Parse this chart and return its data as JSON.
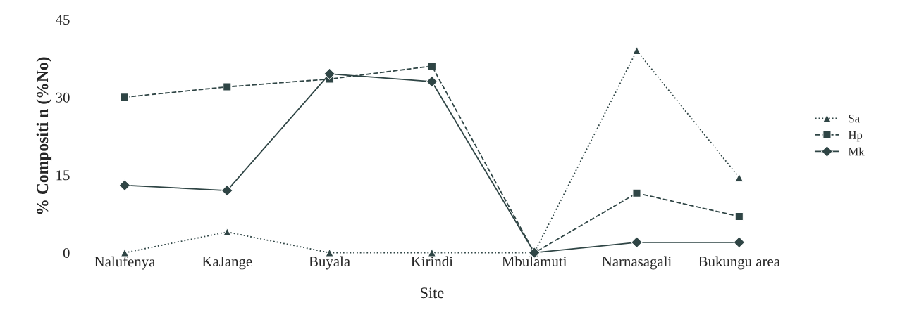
{
  "chart_data": {
    "type": "line",
    "ylabel": "% Compositi n (%No)",
    "xlabel": "Site",
    "categories": [
      "Nalufenya",
      "KaJange",
      "Buyala",
      "Kirindi",
      "Mbulamuti",
      "Narnasagali",
      "Bukungu area"
    ],
    "series": [
      {
        "name": "Sa",
        "color": "#2f4545",
        "values": [
          0,
          4,
          0,
          0,
          0,
          39,
          14.5
        ],
        "marker": "triangle",
        "line_style": "dotted"
      },
      {
        "name": "Hp",
        "color": "#2f4545",
        "values": [
          30,
          32,
          33.5,
          36,
          0,
          11.5,
          7
        ],
        "marker": "square",
        "line_style": "dashed"
      },
      {
        "name": "Mk",
        "color": "#2f4545",
        "values": [
          13,
          12,
          34.5,
          33,
          0,
          2,
          2
        ],
        "marker": "diamond",
        "line_style": "solid"
      }
    ],
    "ylim": [
      0,
      45
    ],
    "yticks": [
      0,
      15,
      30,
      45
    ],
    "grid": false,
    "legend": "right"
  }
}
